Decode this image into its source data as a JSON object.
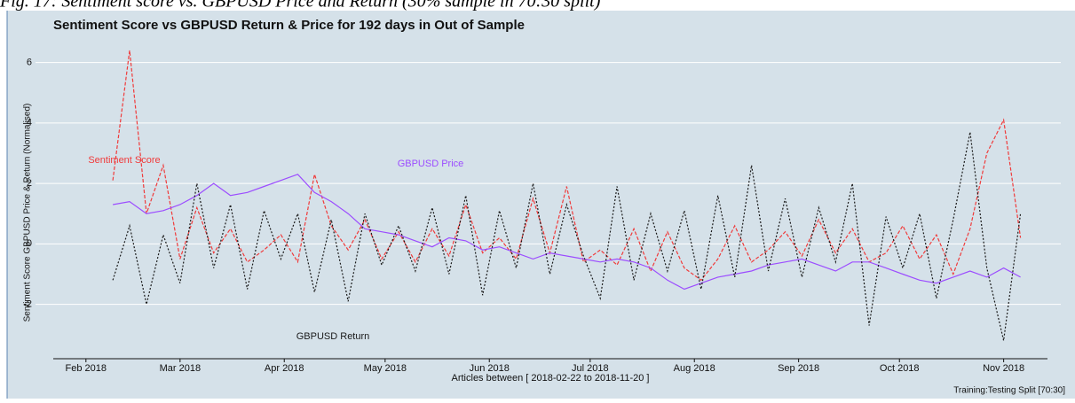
{
  "caption": "Fig. 17: Sentiment score vs. GBPUSD Price and Return (30% sample in 70:30 split)",
  "chart_data": {
    "type": "line",
    "title": "Sentiment Score vs  GBPUSD Return & Price for 192 days in Out of Sample",
    "y_label": "Sentiment Score GBPUSD Price & Return (Normalised)",
    "x_label": "Articles between [ 2018-02-22  to 2018-11-20 ]",
    "annotation": "Training:Testing Split [70:30]",
    "grid": true,
    "background": "#d5e1e9",
    "xlim": [
      "2018-01-17",
      "2018-11-18"
    ],
    "xticks": [
      {
        "value": "2018-02-01",
        "label": "Feb 2018"
      },
      {
        "value": "2018-03-01",
        "label": "Mar 2018"
      },
      {
        "value": "2018-04-01",
        "label": "Apr 2018"
      },
      {
        "value": "2018-05-01",
        "label": "May 2018"
      },
      {
        "value": "2018-06-01",
        "label": "Jun 2018"
      },
      {
        "value": "2018-07-01",
        "label": "Jul 2018"
      },
      {
        "value": "2018-08-01",
        "label": "Aug 2018"
      },
      {
        "value": "2018-09-01",
        "label": "Sep 2018"
      },
      {
        "value": "2018-10-01",
        "label": "Oct 2018"
      },
      {
        "value": "2018-11-01",
        "label": "Nov 2018"
      }
    ],
    "ylim": [
      -3.8,
      6.75
    ],
    "yticks": [
      -2,
      0,
      2,
      4,
      6
    ],
    "x": [
      "2018-02-09",
      "2018-02-14",
      "2018-02-19",
      "2018-02-24",
      "2018-03-01",
      "2018-03-06",
      "2018-03-11",
      "2018-03-16",
      "2018-03-21",
      "2018-03-26",
      "2018-03-31",
      "2018-04-05",
      "2018-04-10",
      "2018-04-15",
      "2018-04-20",
      "2018-04-25",
      "2018-04-30",
      "2018-05-05",
      "2018-05-10",
      "2018-05-15",
      "2018-05-20",
      "2018-05-25",
      "2018-05-30",
      "2018-06-04",
      "2018-06-09",
      "2018-06-14",
      "2018-06-19",
      "2018-06-24",
      "2018-06-29",
      "2018-07-04",
      "2018-07-09",
      "2018-07-14",
      "2018-07-19",
      "2018-07-24",
      "2018-07-29",
      "2018-08-03",
      "2018-08-08",
      "2018-08-13",
      "2018-08-18",
      "2018-08-23",
      "2018-08-28",
      "2018-09-02",
      "2018-09-07",
      "2018-09-12",
      "2018-09-17",
      "2018-09-22",
      "2018-09-27",
      "2018-10-02",
      "2018-10-07",
      "2018-10-12",
      "2018-10-17",
      "2018-10-22",
      "2018-10-27",
      "2018-11-01",
      "2018-11-06"
    ],
    "series": [
      {
        "name": "Sentiment Score",
        "color": "#f03a3a",
        "dash": "4,2",
        "values": [
          2.1,
          6.4,
          1.0,
          2.6,
          -0.5,
          1.2,
          -0.3,
          0.5,
          -0.6,
          -0.2,
          0.3,
          -0.6,
          2.3,
          0.6,
          -0.2,
          0.8,
          -0.5,
          0.4,
          -0.6,
          0.5,
          -0.4,
          1.3,
          -0.3,
          0.2,
          -0.5,
          1.5,
          -0.3,
          1.9,
          -0.6,
          -0.2,
          -0.7,
          0.5,
          -0.9,
          0.4,
          -0.8,
          -1.2,
          -0.5,
          0.6,
          -0.6,
          -0.2,
          0.4,
          -0.4,
          0.8,
          -0.3,
          0.5,
          -0.6,
          -0.3,
          0.6,
          -0.5,
          0.3,
          -1.0,
          0.5,
          3.0,
          4.1,
          0.2
        ]
      },
      {
        "name": "GBPUSD Price",
        "color": "#9c4dff",
        "dash": "none",
        "values": [
          1.3,
          1.4,
          1.0,
          1.1,
          1.3,
          1.6,
          2.0,
          1.6,
          1.7,
          1.9,
          2.1,
          2.3,
          1.7,
          1.4,
          1.0,
          0.5,
          0.4,
          0.3,
          0.1,
          -0.1,
          0.2,
          0.1,
          -0.2,
          -0.1,
          -0.3,
          -0.5,
          -0.3,
          -0.4,
          -0.5,
          -0.6,
          -0.5,
          -0.6,
          -0.8,
          -1.2,
          -1.5,
          -1.3,
          -1.1,
          -1.0,
          -0.9,
          -0.7,
          -0.6,
          -0.5,
          -0.7,
          -0.9,
          -0.6,
          -0.6,
          -0.8,
          -1.0,
          -1.2,
          -1.3,
          -1.1,
          -0.9,
          -1.1,
          -0.8,
          -1.1
        ]
      },
      {
        "name": "GBPUSD Return",
        "color": "#1a1a1a",
        "dash": "2,2",
        "values": [
          -1.2,
          0.6,
          -2.0,
          0.3,
          -1.3,
          2.0,
          -0.8,
          1.3,
          -1.5,
          1.1,
          -0.5,
          1.0,
          -1.6,
          0.8,
          -1.9,
          1.0,
          -0.7,
          0.6,
          -0.9,
          1.2,
          -1.0,
          1.6,
          -1.7,
          1.1,
          -0.8,
          2.0,
          -1.0,
          1.3,
          -0.4,
          -1.8,
          1.9,
          -1.2,
          1.0,
          -0.9,
          1.1,
          -1.5,
          1.6,
          -1.1,
          2.6,
          -0.9,
          1.5,
          -1.1,
          1.2,
          -0.6,
          2.0,
          -2.7,
          0.9,
          -0.8,
          1.0,
          -1.8,
          0.8,
          3.7,
          -0.8,
          -3.2,
          1.0
        ]
      }
    ]
  }
}
